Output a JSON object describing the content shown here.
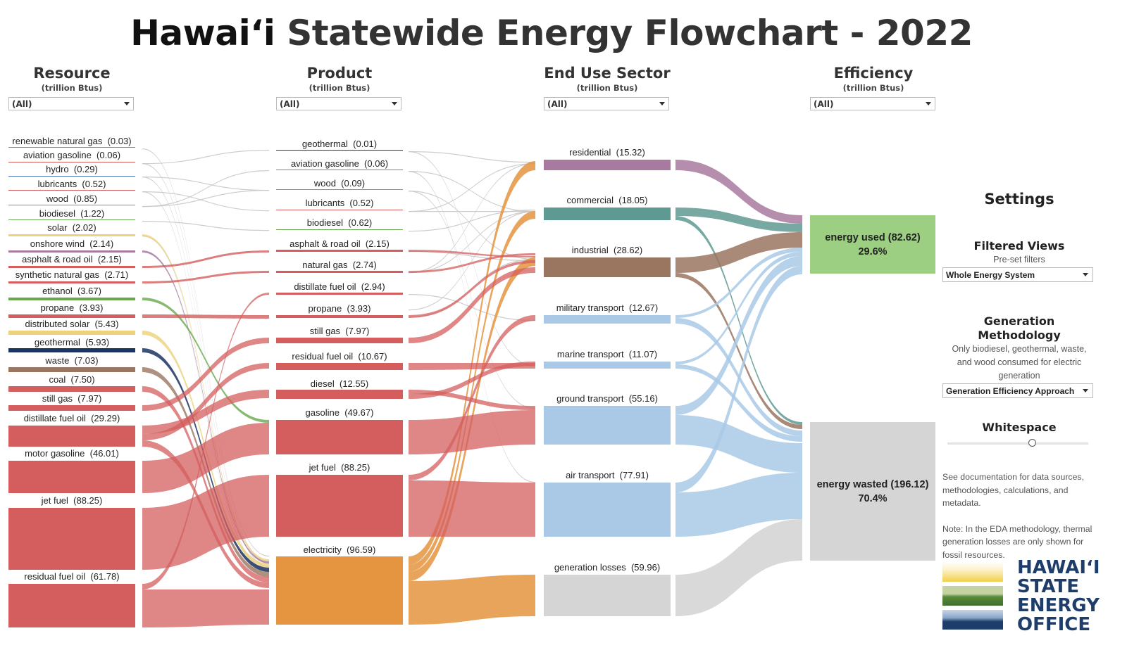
{
  "title": {
    "highlight": "Hawai‘i",
    "rest": " Statewide Energy Flowchart - 2022"
  },
  "columns": [
    {
      "header": "Resource",
      "unit": "(trillion Btus)",
      "filter": "(All)"
    },
    {
      "header": "Product",
      "unit": "(trillion Btus)",
      "filter": "(All)"
    },
    {
      "header": "End Use Sector",
      "unit": "(trillion Btus)",
      "filter": "(All)"
    },
    {
      "header": "Efficiency",
      "unit": "(trillion Btus)",
      "filter": "(All)"
    }
  ],
  "resources": [
    {
      "name": "renewable natural gas",
      "value": "0.03",
      "color": "#6aa84f"
    },
    {
      "name": "aviation gasoline",
      "value": "0.06",
      "color": "#d45e5e"
    },
    {
      "name": "hydro",
      "value": "0.29",
      "color": "#4a72b8"
    },
    {
      "name": "lubricants",
      "value": "0.52",
      "color": "#d45e5e"
    },
    {
      "name": "wood",
      "value": "0.85",
      "color": "#6aa84f"
    },
    {
      "name": "biodiesel",
      "value": "1.22",
      "color": "#6aa84f"
    },
    {
      "name": "solar",
      "value": "2.02",
      "color": "#ecd27a"
    },
    {
      "name": "onshore wind",
      "value": "2.14",
      "color": "#a87aa0"
    },
    {
      "name": "asphalt & road oil",
      "value": "2.15",
      "color": "#d45e5e"
    },
    {
      "name": "synthetic natural gas",
      "value": "2.71",
      "color": "#d45e5e"
    },
    {
      "name": "ethanol",
      "value": "3.67",
      "color": "#6aa84f"
    },
    {
      "name": "propane",
      "value": "3.93",
      "color": "#d45e5e"
    },
    {
      "name": "distributed solar",
      "value": "5.43",
      "color": "#ecd27a"
    },
    {
      "name": "geothermal",
      "value": "5.93",
      "color": "#1c3461"
    },
    {
      "name": "waste",
      "value": "7.03",
      "color": "#9a7660"
    },
    {
      "name": "coal",
      "value": "7.50",
      "color": "#d45e5e"
    },
    {
      "name": "still gas",
      "value": "7.97",
      "color": "#d45e5e"
    },
    {
      "name": "distillate fuel oil",
      "value": "29.29",
      "color": "#d45e5e"
    },
    {
      "name": "motor gasoline",
      "value": "46.01",
      "color": "#d45e5e"
    },
    {
      "name": "jet fuel",
      "value": "88.25",
      "color": "#d45e5e"
    },
    {
      "name": "residual fuel oil",
      "value": "61.78",
      "color": "#d45e5e"
    }
  ],
  "products": [
    {
      "name": "geothermal",
      "value": "0.01",
      "color": "#1c3461"
    },
    {
      "name": "aviation gasoline",
      "value": "0.06",
      "color": "#d45e5e"
    },
    {
      "name": "wood",
      "value": "0.09",
      "color": "#6aa84f"
    },
    {
      "name": "lubricants",
      "value": "0.52",
      "color": "#d45e5e"
    },
    {
      "name": "biodiesel",
      "value": "0.62",
      "color": "#6aa84f"
    },
    {
      "name": "asphalt & road oil",
      "value": "2.15",
      "color": "#d45e5e"
    },
    {
      "name": "natural gas",
      "value": "2.74",
      "color": "#d45e5e"
    },
    {
      "name": "distillate fuel oil",
      "value": "2.94",
      "color": "#d45e5e"
    },
    {
      "name": "propane",
      "value": "3.93",
      "color": "#d45e5e"
    },
    {
      "name": "still gas",
      "value": "7.97",
      "color": "#d45e5e"
    },
    {
      "name": "residual fuel oil",
      "value": "10.67",
      "color": "#d45e5e"
    },
    {
      "name": "diesel",
      "value": "12.55",
      "color": "#d45e5e"
    },
    {
      "name": "gasoline",
      "value": "49.67",
      "color": "#d45e5e"
    },
    {
      "name": "jet fuel",
      "value": "88.25",
      "color": "#d45e5e"
    },
    {
      "name": "electricity",
      "value": "96.59",
      "color": "#e59440"
    }
  ],
  "sectors": [
    {
      "name": "residential",
      "value": "15.32",
      "color": "#a87aa0"
    },
    {
      "name": "commercial",
      "value": "18.05",
      "color": "#5f9a92"
    },
    {
      "name": "industrial",
      "value": "28.62",
      "color": "#9a7660"
    },
    {
      "name": "military transport",
      "value": "12.67",
      "color": "#a9c9e6"
    },
    {
      "name": "marine transport",
      "value": "11.07",
      "color": "#a9c9e6"
    },
    {
      "name": "ground transport",
      "value": "55.16",
      "color": "#a9c9e6"
    },
    {
      "name": "air transport",
      "value": "77.91",
      "color": "#a9c9e6"
    },
    {
      "name": "generation losses",
      "value": "59.96",
      "color": "#d5d5d5"
    }
  ],
  "efficiency": [
    {
      "name": "energy used",
      "value": "82.62",
      "pct": "29.6%",
      "color": "#9ccf82"
    },
    {
      "name": "energy wasted",
      "value": "196.12",
      "pct": "70.4%",
      "color": "#d5d5d5"
    }
  ],
  "settings": {
    "title": "Settings",
    "filtered_views": {
      "heading": "Filtered Views",
      "sub": "Pre-set filters",
      "value": "Whole Energy System"
    },
    "generation": {
      "heading": "Generation Methodology",
      "sub": "Only biodiesel, geothermal, waste, and wood consumed for electric generation",
      "value": "Generation Efficiency Approach"
    },
    "whitespace": {
      "heading": "Whitespace",
      "level": 0.6
    },
    "note1": "See documentation for data sources, methodologies, calculations, and metadata.",
    "note2": "Note: In the EDA methodology, thermal generation losses are only shown for fossil resources."
  },
  "logo": {
    "line1": "HAWAI‘I",
    "line2": "STATE",
    "line3": "ENERGY",
    "line4": "OFFICE",
    "color": "#1e3d6a"
  }
}
